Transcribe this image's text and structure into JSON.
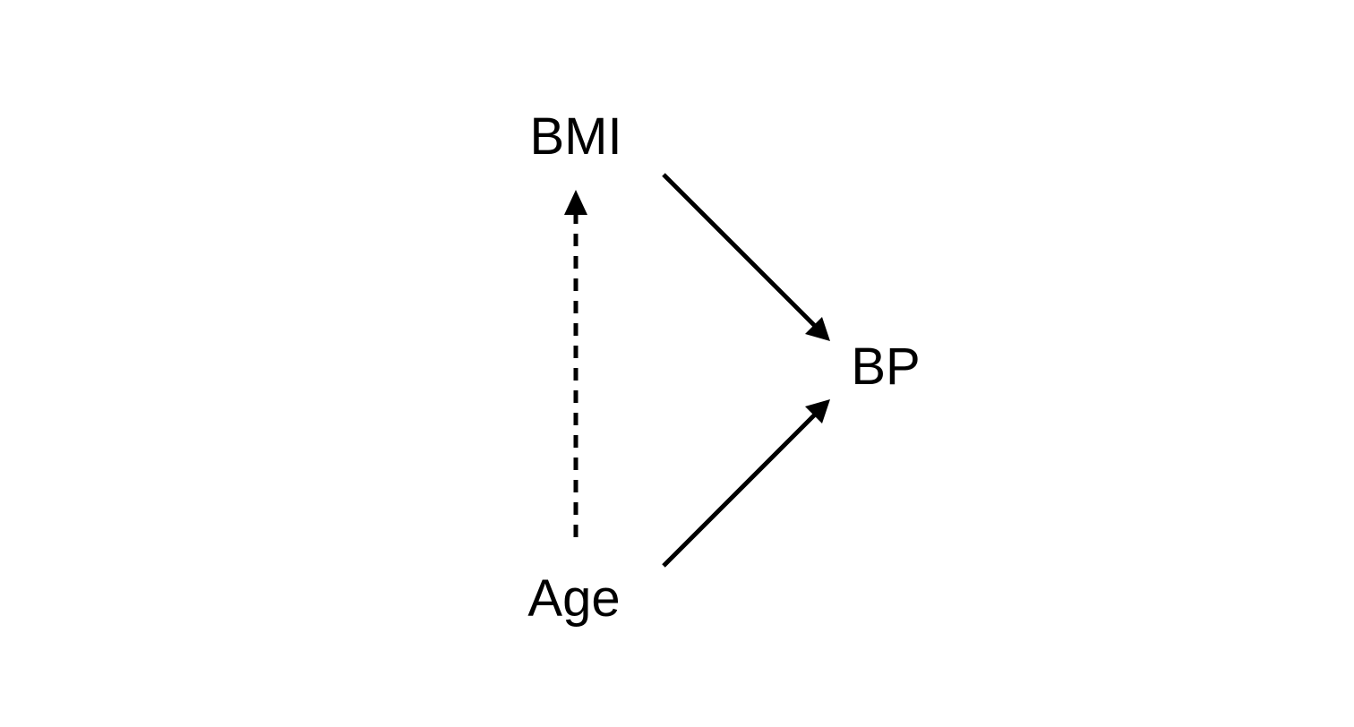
{
  "diagram": {
    "nodes": [
      {
        "id": "bmi",
        "label": "BMI"
      },
      {
        "id": "bp",
        "label": "BP"
      },
      {
        "id": "age",
        "label": "Age"
      }
    ],
    "edges": [
      {
        "from": "bmi",
        "to": "bp",
        "style": "solid"
      },
      {
        "from": "age",
        "to": "bp",
        "style": "solid"
      },
      {
        "from": "age",
        "to": "bmi",
        "style": "dashed"
      }
    ],
    "colors": {
      "stroke": "#000000",
      "background": "#ffffff"
    }
  }
}
